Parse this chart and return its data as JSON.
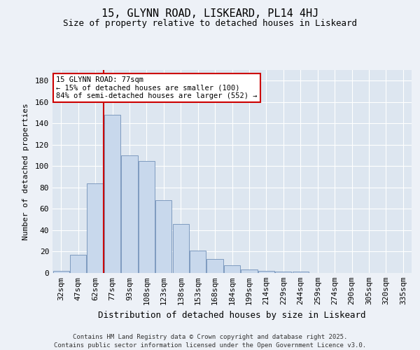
{
  "title": "15, GLYNN ROAD, LISKEARD, PL14 4HJ",
  "subtitle": "Size of property relative to detached houses in Liskeard",
  "xlabel": "Distribution of detached houses by size in Liskeard",
  "ylabel": "Number of detached properties",
  "footer_line1": "Contains HM Land Registry data © Crown copyright and database right 2025.",
  "footer_line2": "Contains public sector information licensed under the Open Government Licence v3.0.",
  "categories": [
    "32sqm",
    "47sqm",
    "62sqm",
    "77sqm",
    "93sqm",
    "108sqm",
    "123sqm",
    "138sqm",
    "153sqm",
    "168sqm",
    "184sqm",
    "199sqm",
    "214sqm",
    "229sqm",
    "244sqm",
    "259sqm",
    "274sqm",
    "290sqm",
    "305sqm",
    "320sqm",
    "335sqm"
  ],
  "values": [
    2,
    17,
    84,
    148,
    110,
    105,
    68,
    46,
    21,
    13,
    7,
    3,
    2,
    1,
    1,
    0,
    0,
    0,
    0,
    0,
    0
  ],
  "bar_color": "#c8d8ec",
  "bar_edge_color": "#7090b8",
  "property_bar_index": 3,
  "annotation_title": "15 GLYNN ROAD: 77sqm",
  "annotation_line2": "← 15% of detached houses are smaller (100)",
  "annotation_line3": "84% of semi-detached houses are larger (552) →",
  "annotation_box_facecolor": "#ffffff",
  "annotation_box_edgecolor": "#cc0000",
  "vline_color": "#cc0000",
  "ylim": [
    0,
    190
  ],
  "yticks": [
    0,
    20,
    40,
    60,
    80,
    100,
    120,
    140,
    160,
    180
  ],
  "bg_color": "#edf1f7",
  "plot_bg_color": "#dde6f0",
  "title_fontsize": 11,
  "subtitle_fontsize": 9,
  "xlabel_fontsize": 9,
  "ylabel_fontsize": 8,
  "tick_fontsize": 8,
  "footer_fontsize": 6.5
}
